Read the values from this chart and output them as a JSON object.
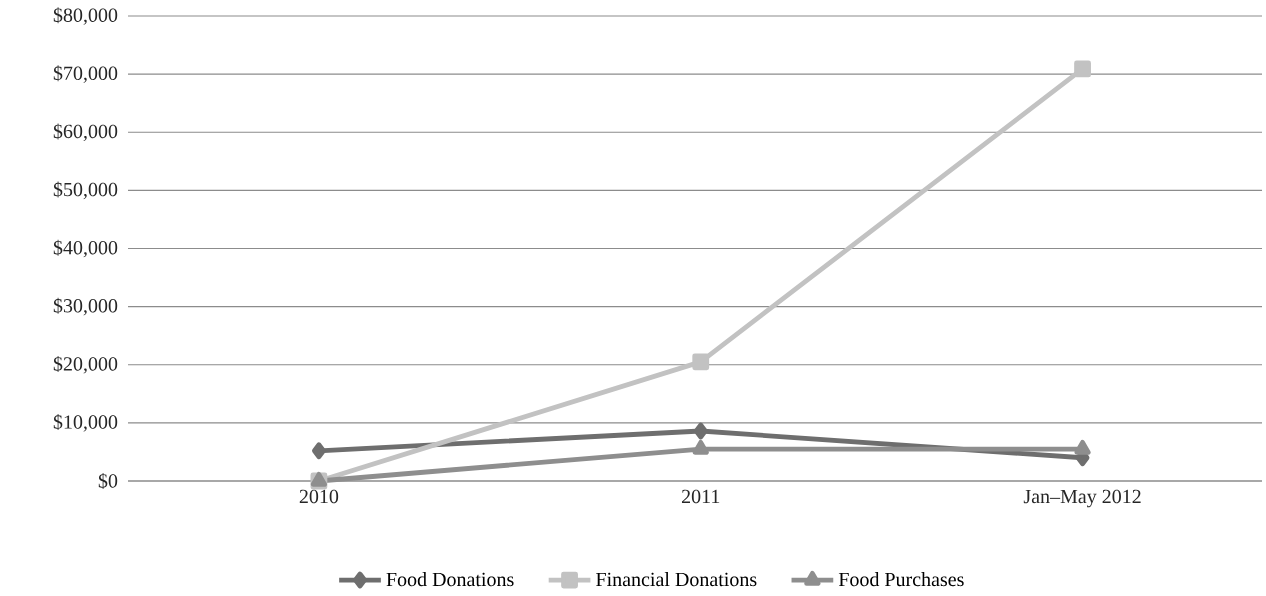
{
  "chart_data": {
    "type": "line",
    "categories": [
      "2010",
      "2011",
      "Jan–May 2012"
    ],
    "series": [
      {
        "name": "Food Donations",
        "color": "#6e6e6e",
        "marker": "diamond",
        "values": [
          5200,
          8600,
          4000
        ]
      },
      {
        "name": "Financial Donations",
        "color": "#c2c2c2",
        "marker": "square",
        "values": [
          0,
          20500,
          70900
        ]
      },
      {
        "name": "Food Purchases",
        "color": "#8e8e8e",
        "marker": "triangle",
        "values": [
          0,
          5500,
          5500
        ]
      }
    ],
    "ylim": [
      0,
      80000
    ],
    "yticks": [
      {
        "value": 0,
        "label": "$0"
      },
      {
        "value": 10000,
        "label": "$10,000"
      },
      {
        "value": 20000,
        "label": "$20,000"
      },
      {
        "value": 30000,
        "label": "$30,000"
      },
      {
        "value": 40000,
        "label": "$40,000"
      },
      {
        "value": 50000,
        "label": "$50,000"
      },
      {
        "value": 60000,
        "label": "$60,000"
      },
      {
        "value": 70000,
        "label": "$70,000"
      },
      {
        "value": 80000,
        "label": "$80,000"
      }
    ],
    "grid": "y",
    "legend": "bottom"
  }
}
